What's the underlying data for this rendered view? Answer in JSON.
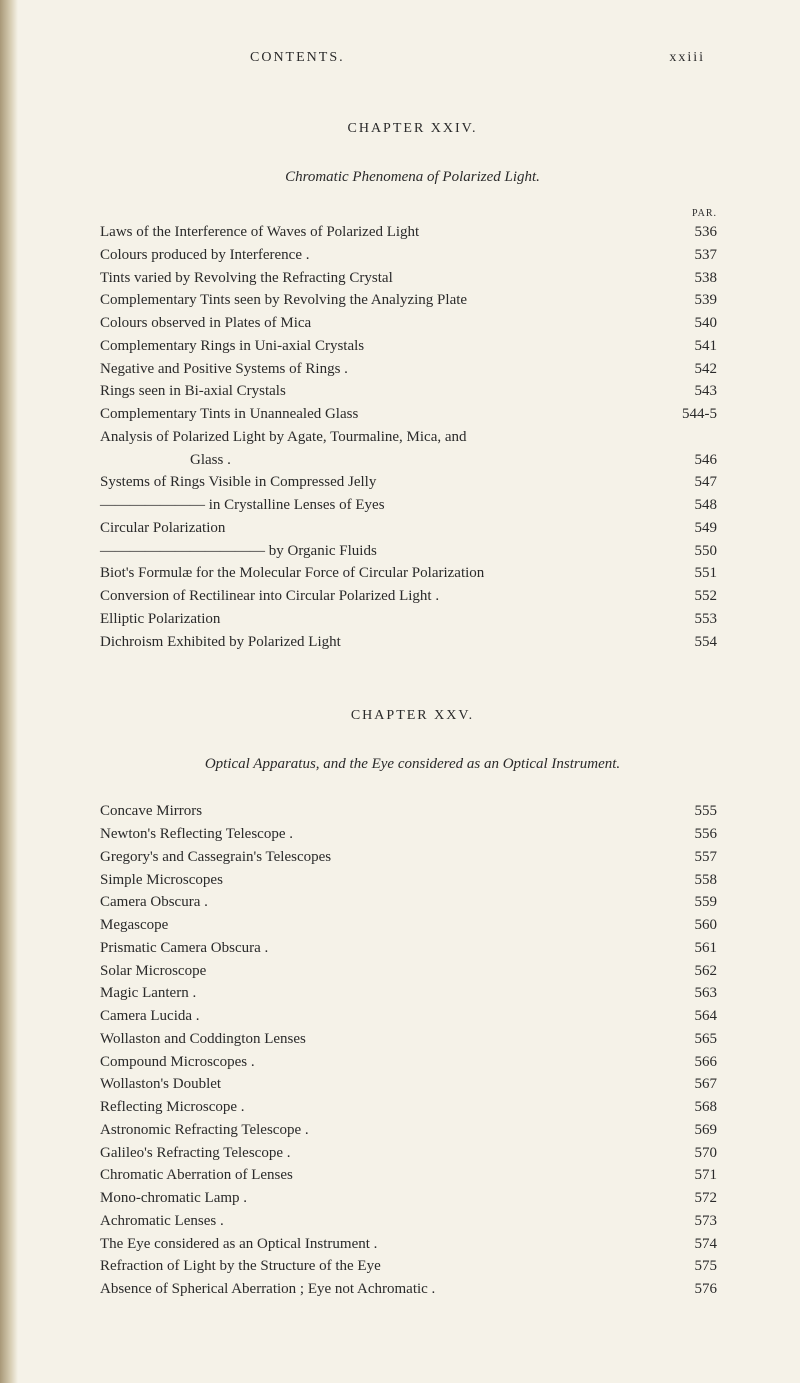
{
  "header": {
    "left": "CONTENTS.",
    "right": "xxiii"
  },
  "chapter24": {
    "heading": "CHAPTER XXIV.",
    "title": "Chromatic Phenomena of Polarized Light.",
    "par_label": "PAR.",
    "entries": [
      {
        "text": "Laws of the Interference of Waves of Polarized Light",
        "page": "536",
        "indent": false
      },
      {
        "text": "Colours produced by Interference .",
        "page": "537",
        "indent": false
      },
      {
        "text": "Tints varied by Revolving the Refracting Crystal",
        "page": "538",
        "indent": false
      },
      {
        "text": "Complementary Tints seen by Revolving the Analyzing Plate",
        "page": "539",
        "indent": false
      },
      {
        "text": "Colours observed in Plates of Mica",
        "page": "540",
        "indent": false
      },
      {
        "text": "Complementary Rings in Uni-axial Crystals",
        "page": "541",
        "indent": false
      },
      {
        "text": "Negative and Positive Systems of Rings .",
        "page": "542",
        "indent": false
      },
      {
        "text": "Rings seen in Bi-axial Crystals",
        "page": "543",
        "indent": false
      },
      {
        "text": "Complementary Tints in Unannealed Glass",
        "page": "544-5",
        "indent": false
      },
      {
        "text": "Analysis of Polarized Light by Agate, Tourmaline, Mica, and",
        "page": "",
        "indent": false
      },
      {
        "text": "Glass .",
        "page": "546",
        "indent": true
      },
      {
        "text": "Systems of Rings Visible in Compressed Jelly",
        "page": "547",
        "indent": false
      },
      {
        "text": "——————— in Crystalline Lenses of Eyes",
        "page": "548",
        "indent": false
      },
      {
        "text": "Circular Polarization",
        "page": "549",
        "indent": false
      },
      {
        "text": "——————————— by Organic Fluids",
        "page": "550",
        "indent": false
      },
      {
        "text": "Biot's Formulæ for the Molecular Force of Circular Polarization",
        "page": "551",
        "indent": false
      },
      {
        "text": "Conversion of Rectilinear into Circular Polarized Light .",
        "page": "552",
        "indent": false
      },
      {
        "text": "Elliptic Polarization",
        "page": "553",
        "indent": false
      },
      {
        "text": "Dichroism Exhibited by Polarized Light",
        "page": "554",
        "indent": false
      }
    ]
  },
  "chapter25": {
    "heading": "CHAPTER XXV.",
    "title": "Optical Apparatus, and the Eye considered as an Optical Instrument.",
    "entries": [
      {
        "text": "Concave Mirrors",
        "page": "555"
      },
      {
        "text": "Newton's Reflecting Telescope .",
        "page": "556"
      },
      {
        "text": "Gregory's and Cassegrain's Telescopes",
        "page": "557"
      },
      {
        "text": "Simple Microscopes",
        "page": "558"
      },
      {
        "text": "Camera Obscura .",
        "page": "559"
      },
      {
        "text": "Megascope",
        "page": "560"
      },
      {
        "text": "Prismatic Camera Obscura .",
        "page": "561"
      },
      {
        "text": "Solar Microscope",
        "page": "562"
      },
      {
        "text": "Magic Lantern .",
        "page": "563"
      },
      {
        "text": "Camera Lucida .",
        "page": "564"
      },
      {
        "text": "Wollaston and Coddington Lenses",
        "page": "565"
      },
      {
        "text": "Compound Microscopes .",
        "page": "566"
      },
      {
        "text": "Wollaston's Doublet",
        "page": "567"
      },
      {
        "text": "Reflecting Microscope .",
        "page": "568"
      },
      {
        "text": "Astronomic Refracting Telescope .",
        "page": "569"
      },
      {
        "text": "Galileo's Refracting Telescope .",
        "page": "570"
      },
      {
        "text": "Chromatic Aberration of Lenses",
        "page": "571"
      },
      {
        "text": "Mono-chromatic Lamp .",
        "page": "572"
      },
      {
        "text": "Achromatic Lenses .",
        "page": "573"
      },
      {
        "text": "The Eye considered as an Optical Instrument .",
        "page": "574"
      },
      {
        "text": "Refraction of Light by the Structure of the Eye",
        "page": "575"
      },
      {
        "text": "Absence of Spherical Aberration ; Eye not Achromatic .",
        "page": "576"
      }
    ]
  }
}
